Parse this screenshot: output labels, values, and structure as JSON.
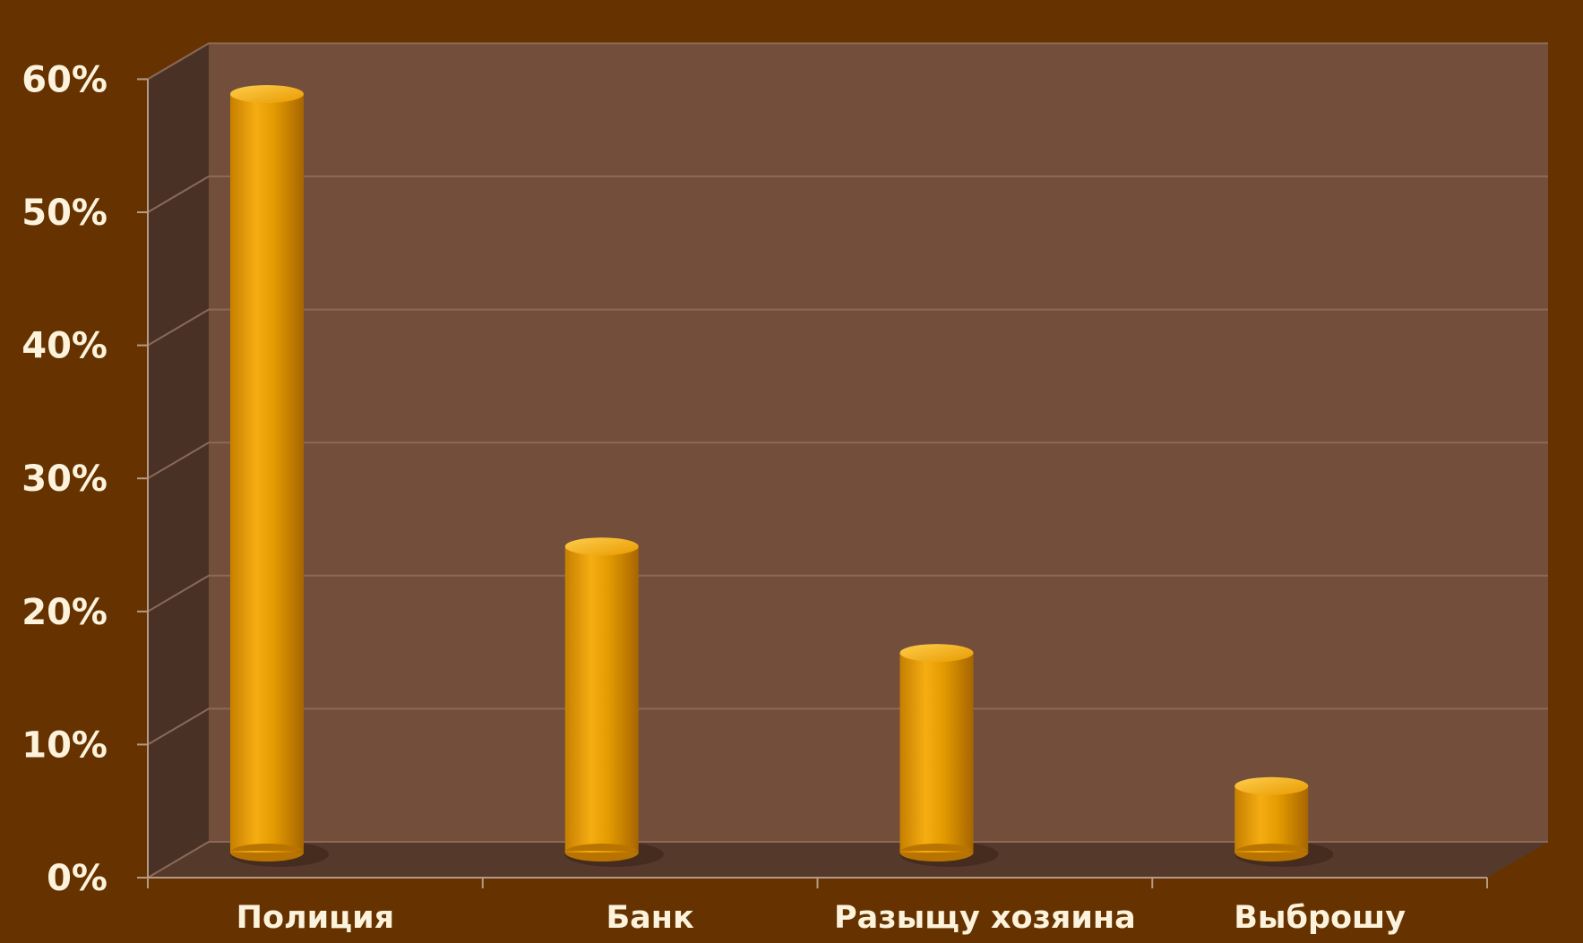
{
  "colors": {
    "background": "#663300",
    "back_wall": "#734f3b",
    "side_wall": "#4a3126",
    "floor": "#55392b",
    "gridline": "#8a6a57",
    "bar": "#f0a400",
    "text": "#fdf3dc"
  },
  "chart_data": {
    "type": "bar",
    "title": "",
    "xlabel": "",
    "ylabel": "",
    "categories": [
      "Полиция",
      "Банк",
      "Разыщу хозяина",
      "Выброшу"
    ],
    "values": [
      57,
      23,
      15,
      5
    ],
    "ylim": [
      0,
      60
    ],
    "yticks": [
      0,
      10,
      20,
      30,
      40,
      50,
      60
    ],
    "ytick_labels": [
      "0%",
      "10%",
      "20%",
      "30%",
      "40%",
      "50%",
      "60%"
    ],
    "grid": true,
    "legend": "none"
  }
}
